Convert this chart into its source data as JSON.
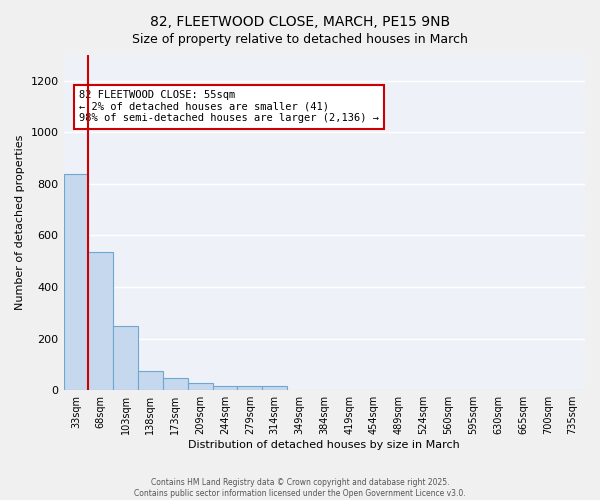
{
  "title_line1": "82, FLEETWOOD CLOSE, MARCH, PE15 9NB",
  "title_line2": "Size of property relative to detached houses in March",
  "xlabel": "Distribution of detached houses by size in March",
  "ylabel": "Number of detached properties",
  "bar_values": [
    838,
    535,
    248,
    75,
    48,
    28,
    18,
    15,
    15,
    0,
    0,
    0,
    0,
    0,
    0,
    0,
    0,
    0,
    0,
    0,
    0
  ],
  "categories": [
    "33sqm",
    "68sqm",
    "103sqm",
    "138sqm",
    "173sqm",
    "209sqm",
    "244sqm",
    "279sqm",
    "314sqm",
    "349sqm",
    "384sqm",
    "419sqm",
    "454sqm",
    "489sqm",
    "524sqm",
    "560sqm",
    "595sqm",
    "630sqm",
    "665sqm",
    "700sqm",
    "735sqm"
  ],
  "bar_color": "#c5d8ed",
  "bar_edge_color": "#6ea8d0",
  "background_color": "#eef2f8",
  "grid_color": "#ffffff",
  "annotation_box_text": "82 FLEETWOOD CLOSE: 55sqm\n← 2% of detached houses are smaller (41)\n98% of semi-detached houses are larger (2,136) →",
  "vline_color": "#cc0000",
  "ylim": [
    0,
    1300
  ],
  "yticks": [
    0,
    200,
    400,
    600,
    800,
    1000,
    1200
  ],
  "footer_line1": "Contains HM Land Registry data © Crown copyright and database right 2025.",
  "footer_line2": "Contains public sector information licensed under the Open Government Licence v3.0."
}
